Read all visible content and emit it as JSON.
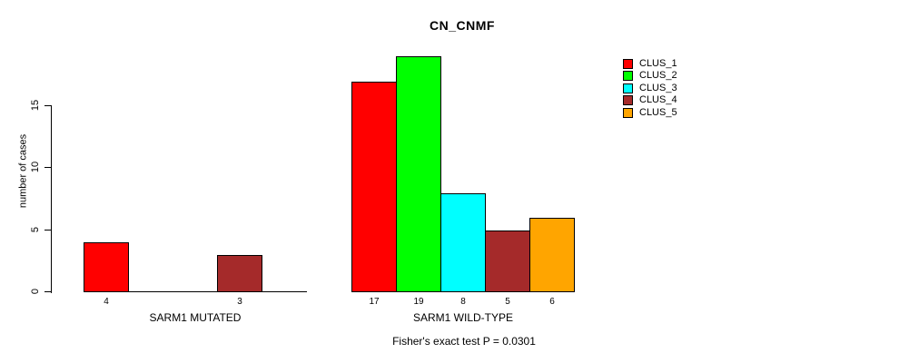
{
  "chart_data": {
    "type": "bar",
    "title": "CN_CNMF",
    "ylabel": "number of cases",
    "yticks": [
      0,
      5,
      10,
      15
    ],
    "ylim": [
      0,
      19
    ],
    "grid": false,
    "legend_position": "right",
    "series": [
      {
        "name": "CLUS_1",
        "color": "#FF0000"
      },
      {
        "name": "CLUS_2",
        "color": "#00FF00"
      },
      {
        "name": "CLUS_3",
        "color": "#00FFFF"
      },
      {
        "name": "CLUS_4",
        "color": "#A52A2A"
      },
      {
        "name": "CLUS_5",
        "color": "#FFA500"
      }
    ],
    "groups": [
      {
        "label": "SARM1 MUTATED",
        "values": [
          4,
          0,
          0,
          3,
          0
        ]
      },
      {
        "label": "SARM1 WILD-TYPE",
        "values": [
          17,
          19,
          8,
          5,
          6
        ]
      }
    ],
    "bar_value_labels_shown": true,
    "annotation": "Fisher's exact test P = 0.0301"
  }
}
